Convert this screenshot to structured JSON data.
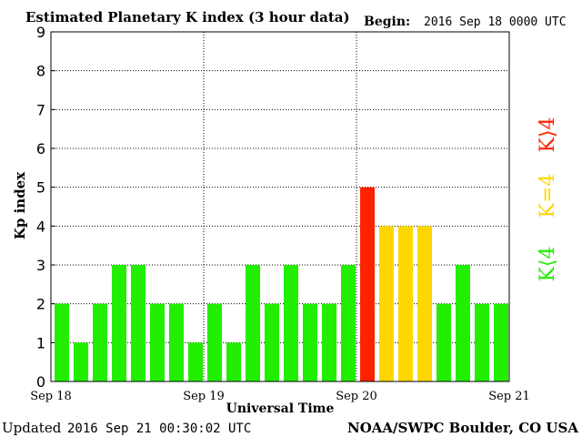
{
  "header": {
    "title": "Estimated Planetary K index (3 hour data)",
    "begin_label": "Begin:",
    "begin_value": "2016 Sep 18 0000 UTC"
  },
  "footer": {
    "updated_label": "Updated",
    "updated_value": "2016 Sep 21 00:30:02 UTC",
    "credit": "NOAA/SWPC Boulder, CO USA"
  },
  "legend": {
    "low": "K⟨4",
    "mid": "K=4",
    "high": "K⟩4"
  },
  "colors": {
    "low": "#22ee00",
    "mid": "#ffd700",
    "high": "#ff2200",
    "grid": "#000000",
    "axis": "#000000"
  },
  "chart_data": {
    "type": "bar",
    "title": "Estimated Planetary K index (3 hour data)",
    "xlabel": "Universal Time",
    "ylabel": "Kp index",
    "ylim": [
      0,
      9
    ],
    "yticks": [
      "0",
      "1",
      "2",
      "3",
      "4",
      "5",
      "6",
      "7",
      "8",
      "9"
    ],
    "xticks": [
      "Sep 18",
      "Sep 19",
      "Sep 20",
      "Sep 21"
    ],
    "grid": true,
    "categories": [
      "Sep 18 00-03",
      "Sep 18 03-06",
      "Sep 18 06-09",
      "Sep 18 09-12",
      "Sep 18 12-15",
      "Sep 18 15-18",
      "Sep 18 18-21",
      "Sep 18 21-24",
      "Sep 19 00-03",
      "Sep 19 03-06",
      "Sep 19 06-09",
      "Sep 19 09-12",
      "Sep 19 12-15",
      "Sep 19 15-18",
      "Sep 19 18-21",
      "Sep 19 21-24",
      "Sep 20 00-03",
      "Sep 20 03-06",
      "Sep 20 06-09",
      "Sep 20 09-12",
      "Sep 20 12-15",
      "Sep 20 15-18",
      "Sep 20 18-21",
      "Sep 20 21-24"
    ],
    "values": [
      2,
      1,
      2,
      3,
      3,
      2,
      2,
      1,
      2,
      1,
      3,
      2,
      3,
      2,
      2,
      3,
      5,
      4,
      4,
      4,
      2,
      3,
      2,
      2
    ]
  }
}
